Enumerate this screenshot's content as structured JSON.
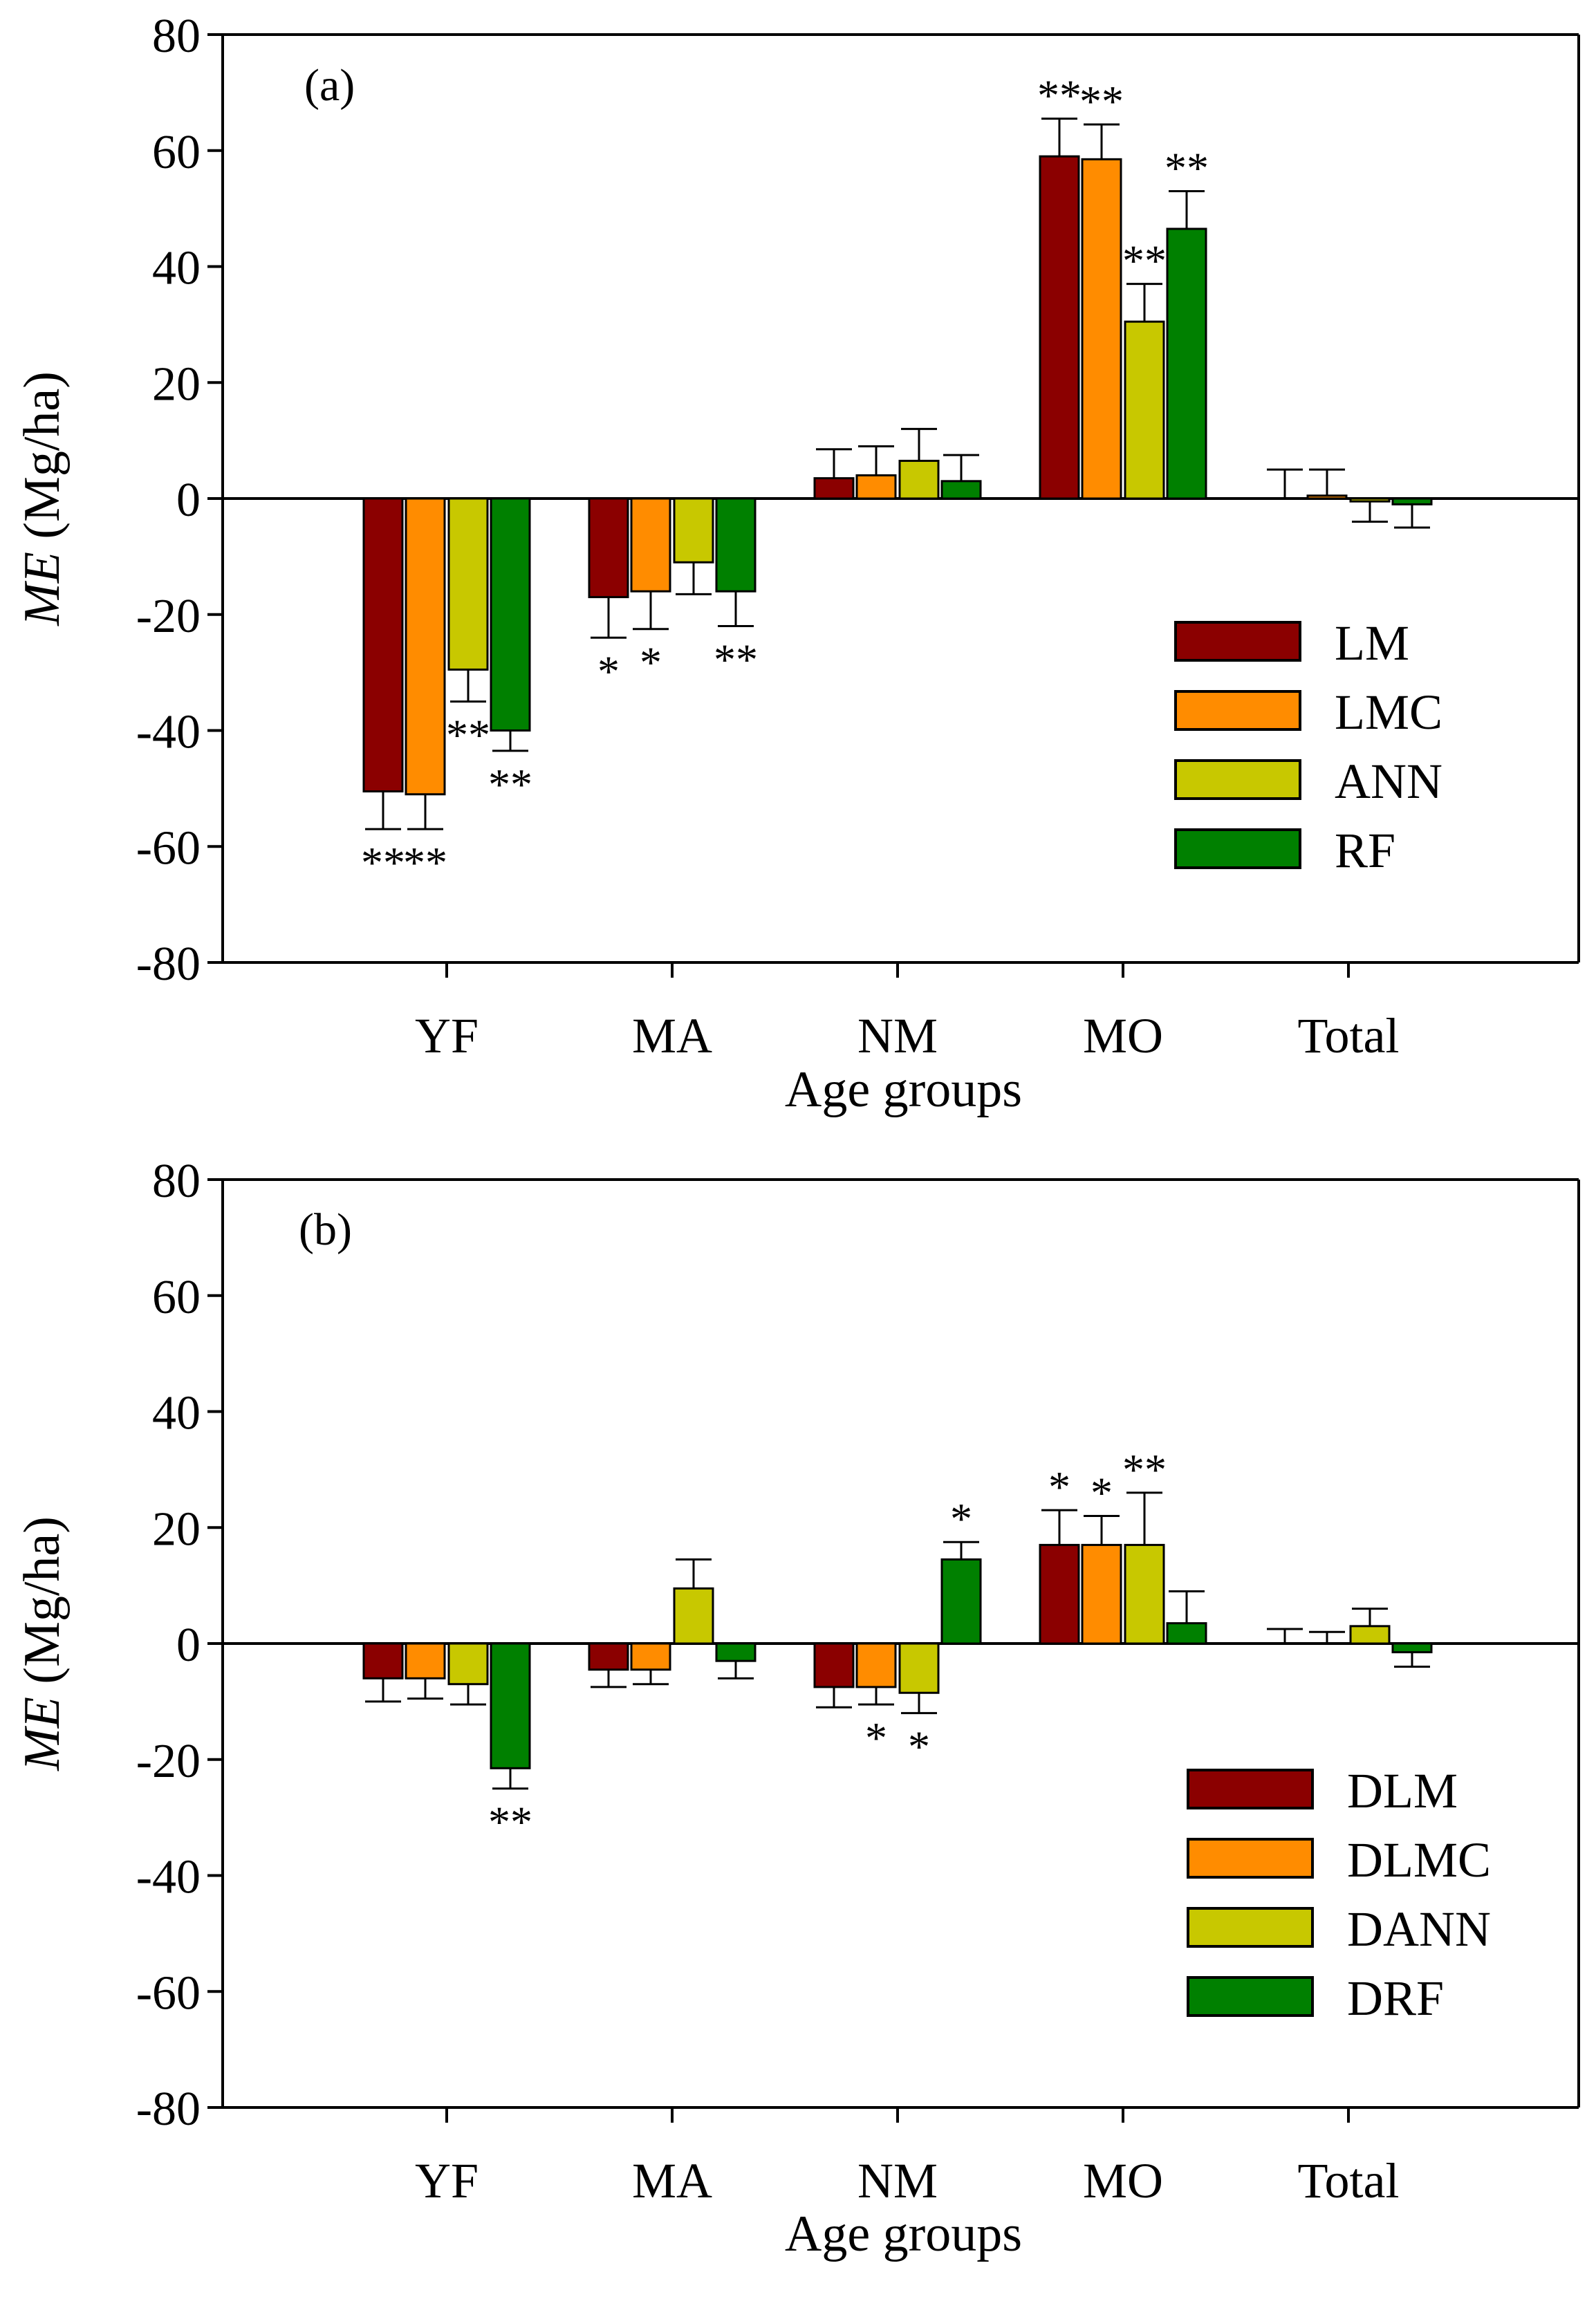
{
  "colors": {
    "LM": "#8b0000",
    "LMC": "#ff8c00",
    "ANN": "#c8c800",
    "RF": "#008000",
    "DLM": "#8b0000",
    "DLMC": "#ff8c00",
    "DANN": "#c8c800",
    "DRF": "#008000"
  },
  "chart_data": [
    {
      "type": "bar",
      "panel_label": "(a)",
      "xlabel": "Age groups",
      "ylabel_italic": "ME",
      "ylabel_unit": " (Mg/ha)",
      "ylim": [
        -80,
        80
      ],
      "yticks": [
        -80,
        -60,
        -40,
        -20,
        0,
        20,
        40,
        60,
        80
      ],
      "categories": [
        "YF",
        "MA",
        "NM",
        "MO",
        "Total"
      ],
      "legend_position": "right-middle",
      "series": [
        {
          "name": "LM",
          "values": [
            -50.5,
            -17,
            3.5,
            59,
            0
          ],
          "error": [
            6.5,
            7,
            5,
            6.5,
            5
          ],
          "markers": [
            "**",
            "*",
            "",
            "**",
            ""
          ]
        },
        {
          "name": "LMC",
          "values": [
            -51,
            -16,
            4,
            58.5,
            0.5
          ],
          "error": [
            6,
            6.5,
            5,
            6,
            4.5
          ],
          "markers": [
            "**",
            "*",
            "",
            "**",
            ""
          ]
        },
        {
          "name": "ANN",
          "values": [
            -29.5,
            -11,
            6.5,
            30.5,
            -0.5
          ],
          "error": [
            5.5,
            5.5,
            5.5,
            6.5,
            3.5
          ],
          "markers": [
            "**",
            "",
            "",
            "**",
            ""
          ]
        },
        {
          "name": "RF",
          "values": [
            -40,
            -16,
            3,
            46.5,
            -1
          ],
          "error": [
            3.5,
            6,
            4.5,
            6.5,
            4
          ],
          "markers": [
            "**",
            "**",
            "",
            "**",
            ""
          ]
        }
      ]
    },
    {
      "type": "bar",
      "panel_label": "(b)",
      "xlabel": "Age groups",
      "ylabel_italic": "ME",
      "ylabel_unit": " (Mg/ha)",
      "ylim": [
        -80,
        80
      ],
      "yticks": [
        -80,
        -60,
        -40,
        -20,
        0,
        20,
        40,
        60,
        80
      ],
      "categories": [
        "YF",
        "MA",
        "NM",
        "MO",
        "Total"
      ],
      "legend_position": "right-bottom",
      "series": [
        {
          "name": "DLM",
          "values": [
            -6,
            -4.5,
            -7.5,
            17,
            0
          ],
          "error": [
            4,
            3,
            3.5,
            6,
            2.5
          ],
          "markers": [
            "",
            "",
            "",
            "*",
            ""
          ]
        },
        {
          "name": "DLMC",
          "values": [
            -6,
            -4.5,
            -7.5,
            17,
            0
          ],
          "error": [
            3.5,
            2.5,
            3,
            5,
            2
          ],
          "markers": [
            "",
            "",
            "*",
            "*",
            ""
          ]
        },
        {
          "name": "DANN",
          "values": [
            -7,
            9.5,
            -8.5,
            17,
            3
          ],
          "error": [
            3.5,
            5,
            3.5,
            9,
            3
          ],
          "markers": [
            "",
            "",
            "*",
            "**",
            ""
          ]
        },
        {
          "name": "DRF",
          "values": [
            -21.5,
            -3,
            14.5,
            3.5,
            -1.5
          ],
          "error": [
            3.5,
            3,
            3,
            5.5,
            2.5
          ],
          "markers": [
            "**",
            "",
            "*",
            "",
            ""
          ]
        }
      ]
    }
  ]
}
